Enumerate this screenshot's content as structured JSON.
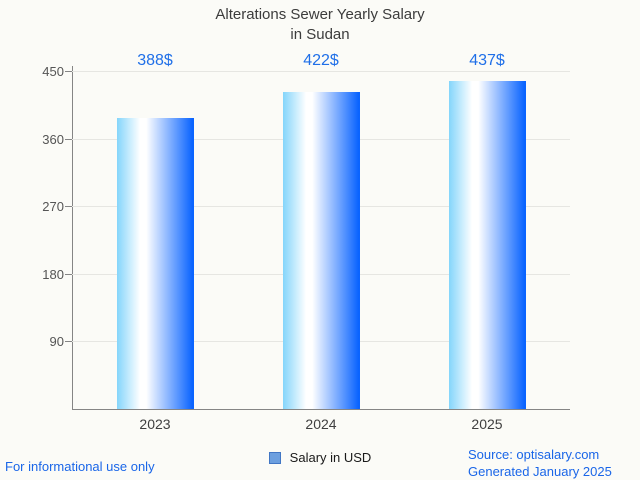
{
  "title": {
    "line1": "Alterations Sewer Yearly Salary",
    "line2": "in Sudan"
  },
  "chart_data": {
    "type": "bar",
    "categories": [
      "2023",
      "2024",
      "2025"
    ],
    "values": [
      388,
      422,
      437
    ],
    "value_labels": [
      "388$",
      "422$",
      "437$"
    ],
    "series_name": "Salary in USD",
    "title": "Alterations Sewer Yearly Salary in Sudan",
    "xlabel": "",
    "ylabel": "",
    "y_ticks": [
      90,
      180,
      270,
      360,
      450
    ],
    "ylim": [
      0,
      450
    ],
    "grid": true,
    "legend_position": "bottom-center"
  },
  "legend": {
    "label": "Salary in USD"
  },
  "footer": {
    "left": "For informational use only",
    "source": "Source: optisalary.com",
    "generated": "Generated January 2025"
  },
  "colors": {
    "background": "#fbfbf7",
    "title": "#3c3c3c",
    "grid": "#e6e6e2",
    "axis": "#858585",
    "tick_label": "#555555",
    "category_label": "#3f3f3f",
    "value_label": "#1f6fe8",
    "link": "#1a66e8",
    "bar_gradient_left": "#84d5fb",
    "bar_gradient_mid": "#ffffff",
    "bar_gradient_right": "#0a64ff",
    "legend_marker_fill": "#6c9fdf",
    "legend_marker_border": "#4176c4"
  }
}
